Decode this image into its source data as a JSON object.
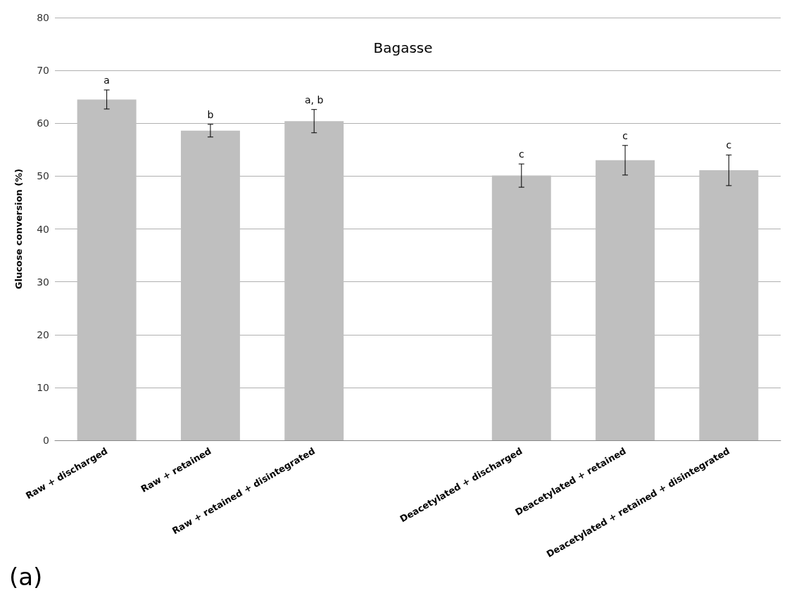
{
  "chart_data": {
    "type": "bar",
    "title": "Bagasse",
    "ylabel": "Glucose conversion (%)",
    "categories": [
      "Raw + discharged",
      "Raw + retained",
      "Raw + retained + disintegrated",
      null,
      "Deacetylated + discharged",
      "Deacetylated + retained",
      "Deacetylated + retained + disintegrated"
    ],
    "values": [
      64.5,
      58.6,
      60.4,
      null,
      50.1,
      53.0,
      51.1
    ],
    "errors": [
      1.8,
      1.2,
      2.2,
      null,
      2.2,
      2.8,
      2.9
    ],
    "color": "#bfbfbf",
    "ylim": [
      0,
      80
    ],
    "yticks": [
      0,
      10,
      20,
      30,
      40,
      50,
      60,
      70,
      80
    ],
    "grid": "y",
    "annotations": [
      {
        "text": "a",
        "x": "Raw + discharged",
        "y": 64.5
      },
      {
        "text": "b",
        "x": "Raw + retained",
        "y": 58.6
      },
      {
        "text": "a, b",
        "x": "Raw + retained + disintegrated",
        "y": 60.4
      },
      {
        "text": "c",
        "x": "Deacetylated + discharged",
        "y": 50.1
      },
      {
        "text": "c",
        "x": "Deacetylated + retained",
        "y": 53.0
      },
      {
        "text": "c",
        "x": "Deacetylated + retained + disintegrated",
        "y": 51.1
      },
      "(a)"
    ]
  }
}
